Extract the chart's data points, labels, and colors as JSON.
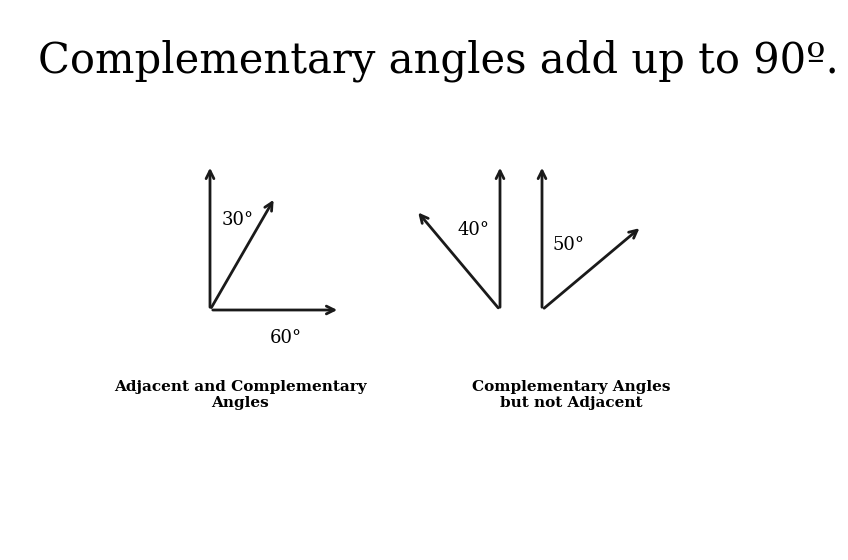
{
  "title": "Complementary angles add up to 90º.",
  "title_fontsize": 30,
  "bg_color": "#ffffff",
  "arrow_color": "#1a1a1a",
  "left_caption": "Adjacent and Complementary\nAngles",
  "right_caption": "Complementary Angles\nbut not Adjacent",
  "label_30": "30°",
  "label_60": "60°",
  "label_40": "40°",
  "label_50": "50°",
  "lw": 2.0,
  "ms": 14
}
